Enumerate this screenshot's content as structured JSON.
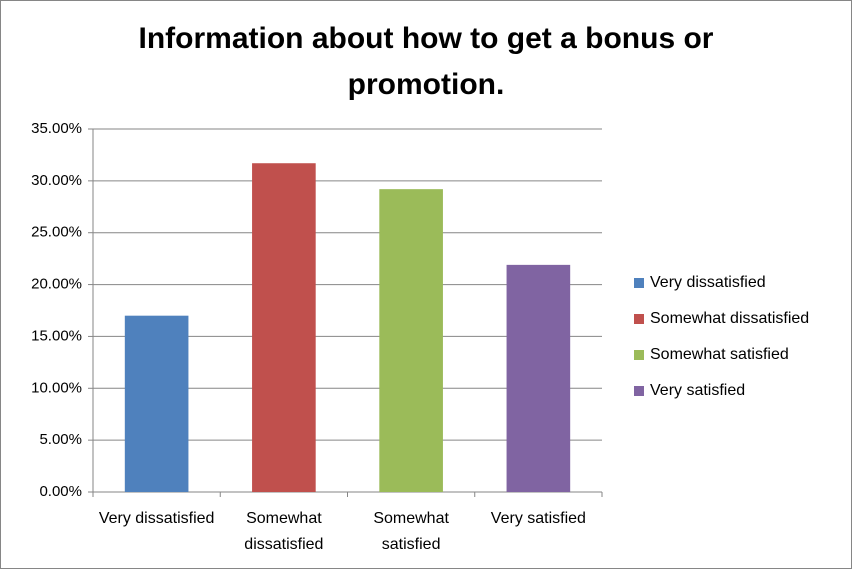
{
  "chart_data": {
    "type": "bar",
    "title": "Information about how to get a bonus or promotion.",
    "categories": [
      "Very dissatisfied",
      "Somewhat dissatisfied",
      "Somewhat satisfied",
      "Very satisfied"
    ],
    "values": [
      17,
      31.7,
      29.2,
      21.9
    ],
    "colors": [
      "#4f81bd",
      "#c0504d",
      "#9bbb59",
      "#8064a2"
    ],
    "ylim": [
      0,
      35
    ],
    "yticks": [
      {
        "value": 0,
        "label": "0.00%"
      },
      {
        "value": 5,
        "label": "5.00%"
      },
      {
        "value": 10,
        "label": "10.00%"
      },
      {
        "value": 15,
        "label": "15.00%"
      },
      {
        "value": 20,
        "label": "20.00%"
      },
      {
        "value": 25,
        "label": "25.00%"
      },
      {
        "value": 30,
        "label": "30.00%"
      },
      {
        "value": 35,
        "label": "35.00%"
      }
    ],
    "grid": true,
    "legend": "right"
  }
}
